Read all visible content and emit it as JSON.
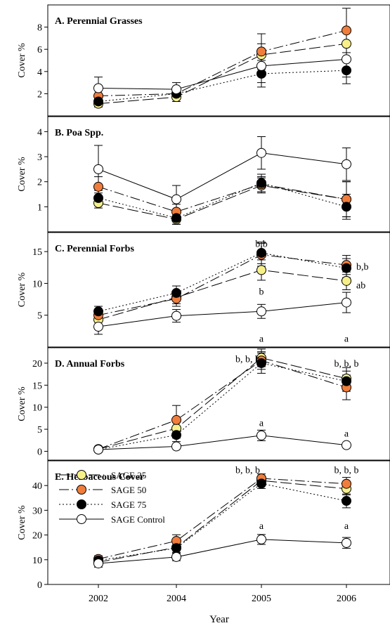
{
  "chart_data": [
    {
      "type": "line",
      "title": "A. Perennial Grasses",
      "ylabel": "Cover %",
      "ylim": [
        0,
        10
      ],
      "yticks": [
        2,
        4,
        6,
        8
      ],
      "x": [
        "2002",
        "2004",
        "2005",
        "2006"
      ],
      "series": [
        {
          "name": "SAGE 25",
          "values": [
            1.1,
            1.7,
            5.5,
            6.5
          ],
          "err": [
            0.3,
            0.4,
            1.0,
            1.2
          ]
        },
        {
          "name": "SAGE 50",
          "values": [
            1.8,
            2.0,
            5.8,
            7.7
          ],
          "err": [
            0.5,
            0.5,
            1.6,
            2.0
          ]
        },
        {
          "name": "SAGE 75",
          "values": [
            1.3,
            2.0,
            3.8,
            4.1
          ],
          "err": [
            0.4,
            0.5,
            1.2,
            1.2
          ]
        },
        {
          "name": "SAGE Control",
          "values": [
            2.5,
            2.4,
            4.5,
            5.1
          ],
          "err": [
            1.0,
            0.6,
            1.5,
            1.6
          ]
        }
      ],
      "annotations": []
    },
    {
      "type": "line",
      "title": "B. Poa Spp.",
      "ylabel": "Cover %",
      "ylim": [
        0,
        4.6
      ],
      "yticks": [
        1,
        2,
        3,
        4
      ],
      "x": [
        "2002",
        "2004",
        "2005",
        "2006"
      ],
      "series": [
        {
          "name": "SAGE 25",
          "values": [
            1.15,
            0.5,
            1.85,
            1.3
          ],
          "err": [
            0.2,
            0.2,
            0.3,
            0.7
          ]
        },
        {
          "name": "SAGE 50",
          "values": [
            1.8,
            0.8,
            1.9,
            1.3
          ],
          "err": [
            0.4,
            0.3,
            0.3,
            0.7
          ]
        },
        {
          "name": "SAGE 75",
          "values": [
            1.35,
            0.55,
            1.95,
            1.0
          ],
          "err": [
            0.3,
            0.25,
            0.35,
            0.5
          ]
        },
        {
          "name": "SAGE Control",
          "values": [
            2.5,
            1.3,
            3.15,
            2.7
          ],
          "err": [
            0.95,
            0.55,
            0.65,
            0.65
          ]
        }
      ],
      "annotations": []
    },
    {
      "type": "line",
      "title": "C. Perennial Forbs",
      "ylabel": "Cover %",
      "ylim": [
        0,
        18
      ],
      "yticks": [
        5,
        10,
        15
      ],
      "x": [
        "2002",
        "2004",
        "2005",
        "2006"
      ],
      "series": [
        {
          "name": "SAGE 25",
          "values": [
            4.3,
            7.8,
            12.1,
            10.4
          ],
          "err": [
            0.8,
            1.0,
            1.6,
            1.4
          ]
        },
        {
          "name": "SAGE 50",
          "values": [
            5.0,
            7.6,
            14.5,
            12.9
          ],
          "err": [
            0.8,
            1.2,
            1.8,
            1.5
          ]
        },
        {
          "name": "SAGE 75",
          "values": [
            5.6,
            8.5,
            14.8,
            12.4
          ],
          "err": [
            0.8,
            1.1,
            1.7,
            1.5
          ]
        },
        {
          "name": "SAGE Control",
          "values": [
            3.2,
            4.9,
            5.6,
            7.0
          ],
          "err": [
            1.2,
            1.0,
            1.1,
            1.6
          ]
        }
      ],
      "annotations": [
        {
          "x": "2005",
          "y": 16.3,
          "text": "b,b"
        },
        {
          "x": "2005",
          "y": 8.8,
          "text": "b"
        },
        {
          "x": "2005",
          "y": 1.4,
          "text": "a"
        },
        {
          "x": "2006",
          "y": 12.7,
          "text": "b,b",
          "side": "right"
        },
        {
          "x": "2006",
          "y": 9.8,
          "text": "ab",
          "side": "right"
        },
        {
          "x": "2006",
          "y": 1.4,
          "text": "a"
        }
      ]
    },
    {
      "type": "line",
      "title": "D. Annual Forbs",
      "ylabel": "Cover %",
      "ylim": [
        -2,
        23.5
      ],
      "yticks": [
        0,
        5,
        10,
        15,
        20
      ],
      "x": [
        "2002",
        "2004",
        "2005",
        "2006"
      ],
      "series": [
        {
          "name": "SAGE 25",
          "values": [
            0.5,
            5.2,
            21.2,
            16.5
          ],
          "err": [
            0.3,
            2.2,
            2.0,
            2.5
          ]
        },
        {
          "name": "SAGE 50",
          "values": [
            0.5,
            7.1,
            20.6,
            14.5
          ],
          "err": [
            0.3,
            3.3,
            2.0,
            2.8
          ]
        },
        {
          "name": "SAGE 75",
          "values": [
            0.4,
            3.7,
            20.0,
            15.9
          ],
          "err": [
            0.2,
            1.5,
            2.3,
            2.3
          ]
        },
        {
          "name": "SAGE Control",
          "values": [
            0.4,
            1.1,
            3.6,
            1.4
          ],
          "err": [
            0.2,
            0.4,
            1.2,
            0.5
          ]
        }
      ],
      "annotations": [
        {
          "x": "2005",
          "y": 21.0,
          "text": "b, b, b",
          "side": "left"
        },
        {
          "x": "2005",
          "y": 6.5,
          "text": "a"
        },
        {
          "x": "2006",
          "y": 20.0,
          "text": "b, b, b"
        },
        {
          "x": "2006",
          "y": 4.1,
          "text": "a"
        }
      ]
    },
    {
      "type": "line",
      "title": "E. Herbaceous Cover",
      "ylabel": "Cover %",
      "xlabel": "Year",
      "ylim": [
        0,
        50
      ],
      "yticks": [
        0,
        10,
        20,
        30,
        40
      ],
      "x": [
        "2002",
        "2004",
        "2005",
        "2006"
      ],
      "series": [
        {
          "name": "SAGE 25",
          "values": [
            9.0,
            15.0,
            42.0,
            38.7
          ],
          "err": [
            1.2,
            2.0,
            1.8,
            2.5
          ]
        },
        {
          "name": "SAGE 50",
          "values": [
            10.3,
            17.6,
            42.9,
            40.7
          ],
          "err": [
            1.3,
            2.5,
            1.8,
            2.6
          ]
        },
        {
          "name": "SAGE 75",
          "values": [
            9.7,
            14.7,
            40.8,
            33.8
          ],
          "err": [
            1.3,
            2.0,
            2.0,
            2.8
          ]
        },
        {
          "name": "SAGE Control",
          "values": [
            8.5,
            11.1,
            18.2,
            16.8
          ],
          "err": [
            1.5,
            1.5,
            2.0,
            2.2
          ]
        }
      ],
      "annotations": [
        {
          "x": "2005",
          "y": 46.5,
          "text": "b, b, b",
          "side": "left"
        },
        {
          "x": "2005",
          "y": 23.8,
          "text": "a"
        },
        {
          "x": "2006",
          "y": 46.5,
          "text": "b, b, b"
        },
        {
          "x": "2006",
          "y": 23.8,
          "text": "a"
        }
      ],
      "legend": "top-left"
    }
  ],
  "legend": [
    {
      "name": "SAGE 25",
      "fill": "#f7f08a",
      "dash": "long-dash"
    },
    {
      "name": "SAGE 50",
      "fill": "#f07d3c",
      "dash": "dash-dot"
    },
    {
      "name": "SAGE 75",
      "fill": "#000000",
      "dash": "dotted"
    },
    {
      "name": "SAGE Control",
      "fill": "#ffffff",
      "dash": "solid"
    }
  ],
  "xlabel": "Year"
}
